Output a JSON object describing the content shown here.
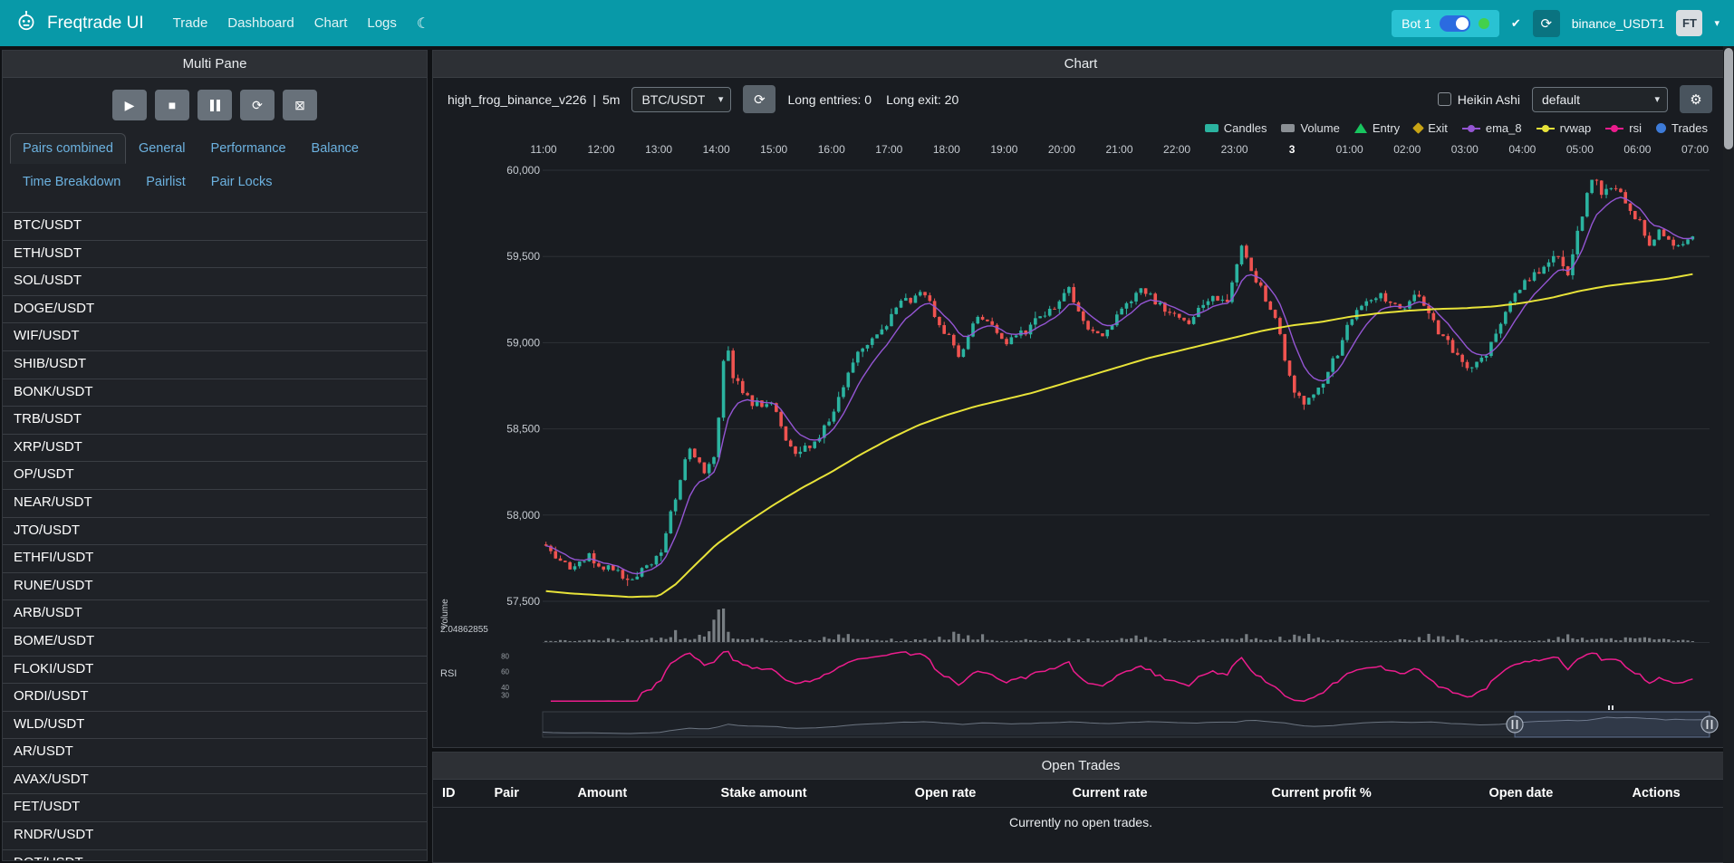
{
  "navbar": {
    "brand": "Freqtrade UI",
    "items": [
      {
        "label": "Trade"
      },
      {
        "label": "Dashboard"
      },
      {
        "label": "Chart"
      },
      {
        "label": "Logs"
      }
    ],
    "bot": {
      "name": "Bot 1",
      "online": true
    },
    "exchange_account": "binance_USDT1",
    "avatar": "FT"
  },
  "icons": {
    "play": "▶",
    "stop": "■",
    "refresh": "⟳",
    "clear": "⊠",
    "gear": "⚙",
    "theme": "☾",
    "check": "✔",
    "caret": "▾"
  },
  "colors": {
    "navbar": "#0899a8",
    "bot_box": "#29c2d3",
    "online_green": "#43d14c",
    "candle_up": "#2bb3a0",
    "candle_down": "#ef5350",
    "rvwap": "#e8e339",
    "ema8": "#9455d3",
    "rsi": "#ec1c8d",
    "volume": "#8a8f94",
    "entry": "#18c55f",
    "exit": "#c8a415",
    "trades": "#3d7bd8"
  },
  "left_panel": {
    "title": "Multi Pane",
    "tabs": [
      {
        "label": "Pairs combined",
        "active": true
      },
      {
        "label": "General"
      },
      {
        "label": "Performance"
      },
      {
        "label": "Balance"
      },
      {
        "label": "Time Breakdown"
      },
      {
        "label": "Pairlist"
      },
      {
        "label": "Pair Locks"
      }
    ],
    "pairs": [
      "BTC/USDT",
      "ETH/USDT",
      "SOL/USDT",
      "DOGE/USDT",
      "WIF/USDT",
      "SHIB/USDT",
      "BONK/USDT",
      "TRB/USDT",
      "XRP/USDT",
      "OP/USDT",
      "NEAR/USDT",
      "JTO/USDT",
      "ETHFI/USDT",
      "RUNE/USDT",
      "ARB/USDT",
      "BOME/USDT",
      "FLOKI/USDT",
      "ORDI/USDT",
      "WLD/USDT",
      "AR/USDT",
      "AVAX/USDT",
      "FET/USDT",
      "RNDR/USDT",
      "DOT/USDT"
    ]
  },
  "chart_panel": {
    "title": "Chart",
    "strategy": "high_frog_binance_v226",
    "separator": "|",
    "timeframe": "5m",
    "pair_select": "BTC/USDT",
    "entries_text": "Long entries: 0",
    "exits_text": "Long exit: 20",
    "heikin_label": "Heikin Ashi",
    "plot_config_select": "default",
    "legend": [
      {
        "label": "Candles",
        "color": "#2bb3a0",
        "type": "rect"
      },
      {
        "label": "Volume",
        "color": "#8a8f94",
        "type": "rect"
      },
      {
        "label": "Entry",
        "color": "#18c55f",
        "type": "triangle"
      },
      {
        "label": "Exit",
        "color": "#c8a415",
        "type": "diamond"
      },
      {
        "label": "ema_8",
        "color": "#9455d3",
        "type": "line"
      },
      {
        "label": "rvwap",
        "color": "#e8e339",
        "type": "line"
      },
      {
        "label": "rsi",
        "color": "#ec1c8d",
        "type": "line"
      },
      {
        "label": "Trades",
        "color": "#3d7bd8",
        "type": "circle"
      }
    ]
  },
  "chart_data": {
    "type": "candlestick",
    "x_labels": [
      "11:00",
      "12:00",
      "13:00",
      "14:00",
      "15:00",
      "16:00",
      "17:00",
      "18:00",
      "19:00",
      "20:00",
      "21:00",
      "22:00",
      "23:00",
      "3",
      "01:00",
      "02:00",
      "03:00",
      "04:00",
      "05:00",
      "06:00",
      "07:00"
    ],
    "bold_x_label": "3",
    "hours": 20,
    "candles_per_hour": 12,
    "seed": 42,
    "ylim": [
      57500,
      60000
    ],
    "y_ticks": [
      {
        "value": 60000,
        "label": "60,000"
      },
      {
        "value": 59500,
        "label": "59,500"
      },
      {
        "value": 59000,
        "label": "59,000"
      },
      {
        "value": 58500,
        "label": "58,500"
      },
      {
        "value": 58000,
        "label": "58,000"
      },
      {
        "value": 57500,
        "label": "57,500"
      }
    ],
    "candle_down": "#ef5350",
    "volume_axis_label": "2.04862855",
    "volume_pane_label": "Volume",
    "rsi_label": "RSI",
    "rsi_ticks": [
      80,
      60,
      40,
      30
    ],
    "price_anchors": {
      "t": [
        0,
        0.4,
        0.8,
        1.2,
        1.5,
        1.8,
        2.0,
        2.2,
        2.5,
        2.8,
        3.0,
        3.15,
        3.3,
        3.6,
        4.0,
        4.3,
        4.7,
        5.0,
        5.4,
        5.8,
        6.2,
        6.6,
        6.9,
        7.2,
        7.6,
        8.0,
        8.4,
        8.8,
        9.1,
        9.4,
        9.7,
        10.0,
        10.4,
        10.8,
        11.2,
        11.6,
        11.9,
        12.1,
        12.4,
        12.7,
        13.0,
        13.2,
        13.5,
        13.8,
        14.1,
        14.5,
        14.9,
        15.2,
        15.5,
        15.8,
        16.1,
        16.4,
        16.7,
        17.0,
        17.3,
        17.6,
        17.8,
        18.0,
        18.2,
        18.4,
        18.6,
        18.8,
        19.0,
        19.2,
        19.4,
        19.6,
        19.8,
        20.0
      ],
      "v": [
        57830,
        57700,
        57760,
        57670,
        57620,
        57700,
        57760,
        58000,
        58380,
        58260,
        58360,
        59020,
        58800,
        58640,
        58640,
        58370,
        58420,
        58550,
        58900,
        59050,
        59230,
        59290,
        59100,
        58930,
        59170,
        59000,
        59080,
        59180,
        59320,
        59100,
        59010,
        59180,
        59300,
        59180,
        59130,
        59280,
        59230,
        59560,
        59340,
        59150,
        58760,
        58620,
        58740,
        58950,
        59200,
        59270,
        59210,
        59280,
        59080,
        58950,
        58820,
        58960,
        59180,
        59350,
        59430,
        59520,
        59400,
        59680,
        59960,
        59860,
        59930,
        59780,
        59720,
        59560,
        59640,
        59580,
        59560,
        59640
      ]
    },
    "rvwap_anchors": {
      "t": [
        0,
        0.5,
        1.0,
        1.5,
        2.0,
        2.3,
        2.6,
        3.0,
        3.5,
        4.0,
        4.5,
        5.0,
        5.5,
        6.0,
        6.5,
        7.0,
        7.5,
        8.0,
        8.5,
        9.0,
        9.5,
        10.0,
        10.5,
        11.0,
        11.5,
        12.0,
        12.5,
        13.0,
        13.5,
        14.0,
        14.5,
        15.0,
        15.5,
        16.0,
        16.5,
        17.0,
        17.5,
        18.0,
        18.5,
        19.0,
        19.5,
        20.0
      ],
      "v": [
        57560,
        57545,
        57535,
        57525,
        57530,
        57600,
        57700,
        57830,
        57950,
        58060,
        58160,
        58250,
        58350,
        58440,
        58520,
        58580,
        58630,
        58670,
        58710,
        58760,
        58810,
        58860,
        58910,
        58950,
        58990,
        59030,
        59070,
        59100,
        59120,
        59150,
        59170,
        59185,
        59195,
        59200,
        59210,
        59230,
        59260,
        59300,
        59330,
        59350,
        59370,
        59400
      ]
    },
    "volume_spikes": [
      {
        "c": 35,
        "m": 9,
        "w": 1.5
      },
      {
        "c": 26,
        "m": 3,
        "w": 2
      },
      {
        "c": 40,
        "m": 2.5,
        "w": 3
      },
      {
        "c": 62,
        "m": 2,
        "w": 3
      },
      {
        "c": 87,
        "m": 2.2,
        "w": 3
      },
      {
        "c": 122,
        "m": 1.8,
        "w": 3
      },
      {
        "c": 146,
        "m": 2.4,
        "w": 2.5
      },
      {
        "c": 158,
        "m": 1.6,
        "w": 3
      },
      {
        "c": 186,
        "m": 1.8,
        "w": 3
      },
      {
        "c": 214,
        "m": 2.2,
        "w": 3
      },
      {
        "c": 228,
        "m": 2,
        "w": 3
      }
    ]
  },
  "open_trades": {
    "title": "Open Trades",
    "columns": [
      "ID",
      "Pair",
      "Amount",
      "Stake amount",
      "Open rate",
      "Current rate",
      "Current profit %",
      "Open date",
      "Actions"
    ],
    "empty_text": "Currently no open trades."
  }
}
